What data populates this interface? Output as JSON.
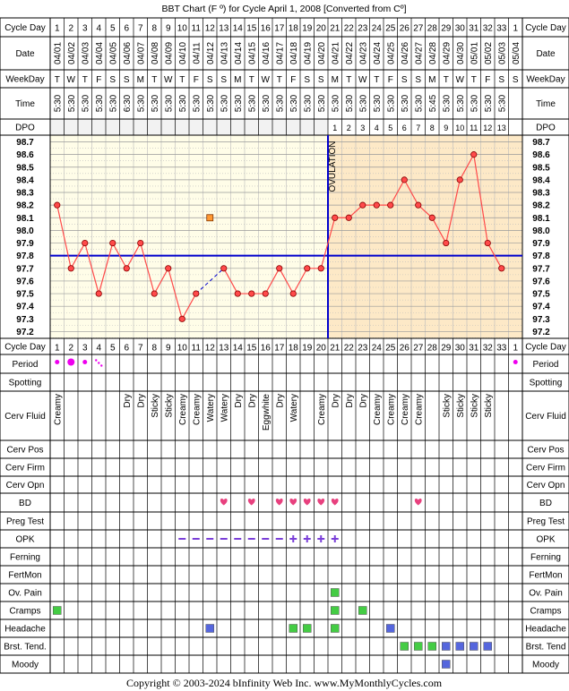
{
  "title": "BBT Chart (F º) for Cycle April 1, 2008  [Converted from Cº]",
  "footer": "Copyright © 2003-2024 bInfinity Web Inc.    www.MyMonthlyCycles.com",
  "row_labels": {
    "cycle_day": "Cycle Day",
    "date": "Date",
    "weekday": "WeekDay",
    "time": "Time",
    "dpo": "DPO",
    "period": "Period",
    "spotting": "Spotting",
    "cerv_fluid": "Cerv Fluid",
    "cerv_pos": "Cerv Pos",
    "cerv_firm": "Cerv Firm",
    "cerv_opn": "Cerv Opn",
    "bd": "BD",
    "preg_test": "Preg Test",
    "opk": "OPK",
    "ferning": "Ferning",
    "fertmon": "FertMon",
    "ov_pain": "Ov. Pain",
    "cramps": "Cramps",
    "headache": "Headache",
    "brst_tend": "Brst. Tend.",
    "moody": "Moody"
  },
  "right_labels": {
    "brst_tend": "Brst. Tend"
  },
  "ovulation_label": "OVULATION",
  "colors": {
    "temp_line": "#ff4a4a",
    "dot_fill": "#ff4a4a",
    "coverline": "#0000cc",
    "post_ov_fill": "#fde9c7",
    "pre_fill": "#fffde8",
    "period": "#ee00ee",
    "opk": "#7a3fd8",
    "heart": "#e8407e",
    "green": "#44cc44",
    "blue": "#5566dd"
  },
  "days": [
    1,
    2,
    3,
    4,
    5,
    6,
    7,
    8,
    9,
    10,
    11,
    12,
    13,
    14,
    15,
    16,
    17,
    18,
    19,
    20,
    21,
    22,
    23,
    24,
    25,
    26,
    27,
    28,
    29,
    30,
    31,
    32,
    33,
    1
  ],
  "dates": [
    "04/01",
    "04/02",
    "04/03",
    "04/04",
    "04/05",
    "04/06",
    "04/07",
    "04/08",
    "04/09",
    "04/10",
    "04/11",
    "04/12",
    "04/13",
    "04/14",
    "04/15",
    "04/16",
    "04/17",
    "04/18",
    "04/19",
    "04/20",
    "04/21",
    "04/22",
    "04/23",
    "04/24",
    "04/25",
    "04/26",
    "04/27",
    "04/28",
    "04/29",
    "04/30",
    "05/01",
    "05/02",
    "05/03",
    "05/04"
  ],
  "weekdays": [
    "T",
    "W",
    "T",
    "F",
    "S",
    "S",
    "M",
    "T",
    "W",
    "T",
    "F",
    "S",
    "S",
    "M",
    "T",
    "W",
    "T",
    "F",
    "S",
    "S",
    "M",
    "T",
    "W",
    "T",
    "F",
    "S",
    "S",
    "M",
    "T",
    "W",
    "T",
    "F",
    "S",
    "S"
  ],
  "times": [
    "5:30",
    "5:30",
    "5:30",
    "5:30",
    "5:30",
    "6:30",
    "5:30",
    "5:30",
    "5:30",
    "5:30",
    "5:30",
    "5:30",
    "5:30",
    "5:30",
    "5:30",
    "5:30",
    "5:30",
    "5:30",
    "5:30",
    "5:30",
    "5:30",
    "5:30",
    "5:30",
    "5:30",
    "5:30",
    "5:30",
    "5:30",
    "5:45",
    "5:30",
    "5:30",
    "5:30",
    "5:30",
    "5:30",
    ""
  ],
  "dpo": [
    "",
    "",
    "",
    "",
    "",
    "",
    "",
    "",
    "",
    "",
    "",
    "",
    "",
    "",
    "",
    "",
    "",
    "",
    "",
    "",
    "1",
    "2",
    "3",
    "4",
    "5",
    "6",
    "7",
    "8",
    "9",
    "10",
    "11",
    "12",
    "13",
    ""
  ],
  "temp_labels": [
    "98.7",
    "98.6",
    "98.5",
    "98.4",
    "98.3",
    "98.2",
    "98.1",
    "98.0",
    "97.9",
    "97.8",
    "97.7",
    "97.6",
    "97.5",
    "97.4",
    "97.3",
    "97.2"
  ],
  "chart_data": {
    "type": "line",
    "title": "BBT Chart (F º) for Cycle April 1, 2008  [Converted from Cº]",
    "ylim": [
      97.2,
      98.7
    ],
    "coverline": 97.8,
    "ovulation_day": 20,
    "series": [
      {
        "values": [
          98.2,
          97.7,
          97.9,
          97.5,
          97.9,
          97.7,
          97.9,
          97.5,
          97.7,
          97.3,
          97.5,
          null,
          97.7,
          97.5,
          97.5,
          97.5,
          97.7,
          97.5,
          97.7,
          97.7,
          98.1,
          98.1,
          98.2,
          98.2,
          98.2,
          98.4,
          98.2,
          98.1,
          97.9,
          98.4,
          98.6,
          97.9,
          97.7,
          null
        ]
      }
    ],
    "discarded": [
      {
        "day": 12,
        "value": 98.1
      }
    ]
  },
  "period": [
    "dot",
    "dot-large",
    "dot",
    "spot",
    "",
    "",
    "",
    "",
    "",
    "",
    "",
    "",
    "",
    "",
    "",
    "",
    "",
    "",
    "",
    "",
    "",
    "",
    "",
    "",
    "",
    "",
    "",
    "",
    "",
    "",
    "",
    "",
    "",
    "dot"
  ],
  "cerv_fluid": [
    "Creamy",
    "",
    "",
    "",
    "",
    "Dry",
    "Dry",
    "Sticky",
    "Sticky",
    "Creamy",
    "Creamy",
    "Watery",
    "Watery",
    "Dry",
    "Dry",
    "Eggwhite",
    "Dry",
    "Watery",
    "",
    "Creamy",
    "Dry",
    "Dry",
    "Dry",
    "Creamy",
    "Creamy",
    "Creamy",
    "Creamy",
    "",
    "Sticky",
    "Sticky",
    "Sticky",
    "Sticky",
    "",
    ""
  ],
  "bd": [
    13,
    15,
    17,
    18,
    19,
    20,
    21,
    27
  ],
  "opk": [
    {
      "day": 10,
      "v": "neg"
    },
    {
      "day": 11,
      "v": "neg"
    },
    {
      "day": 12,
      "v": "neg"
    },
    {
      "day": 13,
      "v": "neg"
    },
    {
      "day": 14,
      "v": "neg"
    },
    {
      "day": 15,
      "v": "neg"
    },
    {
      "day": 16,
      "v": "neg"
    },
    {
      "day": 17,
      "v": "neg"
    },
    {
      "day": 18,
      "v": "pos"
    },
    {
      "day": 19,
      "v": "pos"
    },
    {
      "day": 20,
      "v": "pos"
    },
    {
      "day": 21,
      "v": "pos"
    }
  ],
  "ov_pain": [
    21
  ],
  "cramps": [
    1,
    21,
    23
  ],
  "headache": [
    {
      "day": 12,
      "c": "blue"
    },
    {
      "day": 18,
      "c": "green"
    },
    {
      "day": 19,
      "c": "green"
    },
    {
      "day": 21,
      "c": "green"
    },
    {
      "day": 25,
      "c": "blue"
    }
  ],
  "brst_tend": [
    {
      "day": 26,
      "c": "green"
    },
    {
      "day": 27,
      "c": "green"
    },
    {
      "day": 28,
      "c": "green"
    },
    {
      "day": 29,
      "c": "blue"
    },
    {
      "day": 30,
      "c": "blue"
    },
    {
      "day": 31,
      "c": "blue"
    },
    {
      "day": 32,
      "c": "blue"
    }
  ],
  "moody": [
    {
      "day": 29,
      "c": "blue"
    }
  ]
}
